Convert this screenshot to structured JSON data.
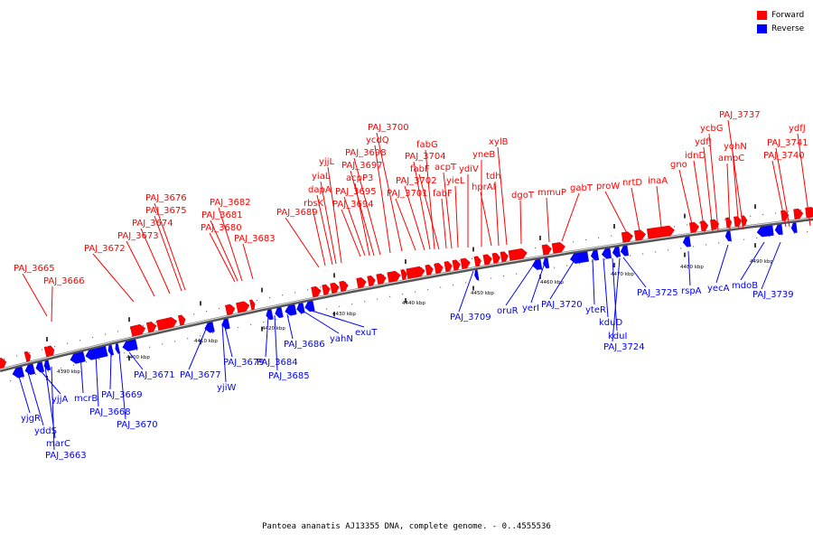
{
  "legend": {
    "forward": {
      "label": "Forward",
      "color": "#ff0000"
    },
    "reverse": {
      "label": "Reverse",
      "color": "#0000ff"
    }
  },
  "caption": "Pantoea ananatis AJ13355 DNA, complete genome. - 0..4555536",
  "tick_labels": [
    "4390 kbp",
    "4400 kbp",
    "4410 kbp",
    "4420 kbp",
    "4430 kbp",
    "4440 kbp",
    "4450 kbp",
    "4460 kbp",
    "4470 kbp",
    "4480 kbp",
    "4490 kbp"
  ],
  "forward_labels": [
    "PAJ_3665",
    "PAJ_3666",
    "PAJ_3672",
    "PAJ_3673",
    "PAJ_3674",
    "PAJ_3675",
    "PAJ_3676",
    "PAJ_3680",
    "PAJ_3681",
    "PAJ_3682",
    "PAJ_3683",
    "PAJ_3689",
    "rbsK",
    "dapA",
    "yiaL",
    "yjjL",
    "PAJ_3694",
    "PAJ_3695",
    "acpP3",
    "PAJ_3697",
    "PAJ_3698",
    "ycdQ",
    "PAJ_3700",
    "PAJ_3701",
    "PAJ_3702",
    "PAJ_3704",
    "fabG",
    "fabF",
    "fabF",
    "acpT",
    "yieL",
    "ydiV",
    "yneB",
    "hprAI",
    "tdh",
    "xylB",
    "dgoT",
    "mmuP",
    "gabT",
    "proW",
    "nrtD",
    "inaA",
    "gno",
    "idnD",
    "ydfJ",
    "ycbG",
    "ampC",
    "yohN",
    "PAJ_3737",
    "PAJ_3740",
    "PAJ_3741",
    "ydfJ"
  ],
  "reverse_labels": [
    "yjgR",
    "yddS",
    "yjjA",
    "marC",
    "PAJ_3663",
    "mcrB",
    "PAJ_3668",
    "PAJ_3669",
    "PAJ_3670",
    "PAJ_3671",
    "PAJ_3677",
    "yjiW",
    "PAJ_3679",
    "PAJ_3684",
    "PAJ_3685",
    "PAJ_3686",
    "yahN",
    "exuT",
    "PAJ_3709",
    "oruR",
    "yerI",
    "PAJ_3720",
    "yteR",
    "kduD",
    "kduI",
    "PAJ_3724",
    "PAJ_3725",
    "rspA",
    "yecA",
    "mdoB",
    "PAJ_3739"
  ]
}
